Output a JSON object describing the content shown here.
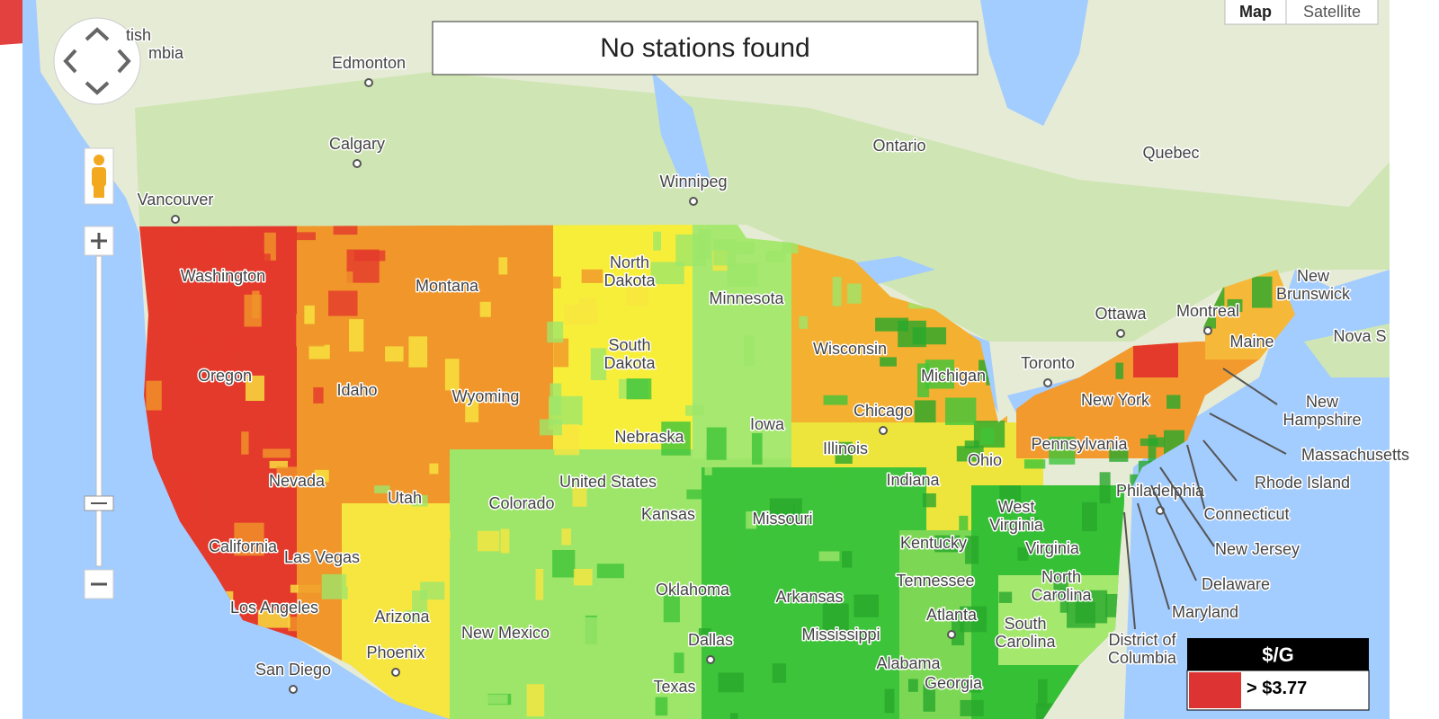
{
  "banner": "No stations found",
  "map_type": {
    "map": "Map",
    "satellite": "Satellite"
  },
  "legend": {
    "title": "$/G",
    "items": [
      {
        "label": "> $3.77",
        "color": "#dd3333"
      }
    ]
  },
  "labels": [
    [
      "tish"
    ],
    [
      "mbia"
    ],
    [
      "Edmonton"
    ],
    [
      "Calgary"
    ],
    [
      "Vancouver"
    ],
    [
      "Winnipeg"
    ],
    [
      "Ontario"
    ],
    [
      "Quebec"
    ],
    [
      "Ottawa"
    ],
    [
      "Montreal"
    ],
    [
      "Toronto"
    ],
    [
      "New",
      "Brunswick"
    ],
    [
      "Nova S"
    ],
    [
      "Washington"
    ],
    [
      "Oregon"
    ],
    [
      "Montana"
    ],
    [
      "Idaho"
    ],
    [
      "Wyoming"
    ],
    [
      "North",
      "Dakota"
    ],
    [
      "South",
      "Dakota"
    ],
    [
      "Minnesota"
    ],
    [
      "Wisconsin"
    ],
    [
      "Michigan"
    ],
    [
      "Nebraska"
    ],
    [
      "Iowa"
    ],
    [
      "Chicago"
    ],
    [
      "Illinois"
    ],
    [
      "Indiana"
    ],
    [
      "Ohio"
    ],
    [
      "Pennsylvania"
    ],
    [
      "New York"
    ],
    [
      "Philadelphia"
    ],
    [
      "United States"
    ],
    [
      "Nevada"
    ],
    [
      "Utah"
    ],
    [
      "Colorado"
    ],
    [
      "Kansas"
    ],
    [
      "Missouri"
    ],
    [
      "West",
      "Virginia"
    ],
    [
      "Kentucky"
    ],
    [
      "Virginia"
    ],
    [
      "North",
      "Carolina"
    ],
    [
      "Tennessee"
    ],
    [
      "South",
      "Carolina"
    ],
    [
      "Atlanta"
    ],
    [
      "Georgia"
    ],
    [
      "California"
    ],
    [
      "Las Vegas"
    ],
    [
      "Los Angeles"
    ],
    [
      "San Diego"
    ],
    [
      "Arizona"
    ],
    [
      "Phoenix"
    ],
    [
      "New Mexico"
    ],
    [
      "Oklahoma"
    ],
    [
      "Arkansas"
    ],
    [
      "Dallas"
    ],
    [
      "Mississippi"
    ],
    [
      "Alabama"
    ],
    [
      "Texas"
    ],
    [
      "Maine"
    ],
    [
      "New",
      "Hampshire"
    ],
    [
      "Massachusetts"
    ],
    [
      "Rhode Island"
    ],
    [
      "Connecticut"
    ],
    [
      "New Jersey"
    ],
    [
      "Delaware"
    ],
    [
      "Maryland"
    ],
    [
      "District of",
      "Columbia"
    ]
  ]
}
